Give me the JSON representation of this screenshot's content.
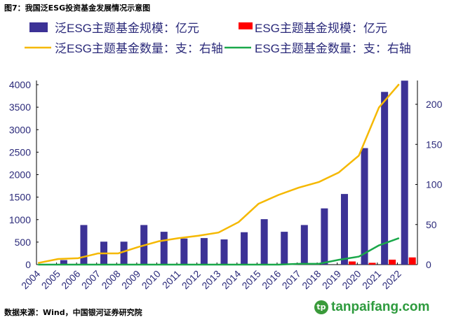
{
  "title": "图7：我国泛ESG投资基金发展情况示意图",
  "source": "数据来源：Wind，中国银河证券研究院",
  "watermark": "tanpaifang.com",
  "chart_data": {
    "type": "bar",
    "categories": [
      "2004",
      "2005",
      "2006",
      "2007",
      "2008",
      "2009",
      "2010",
      "2011",
      "2012",
      "2013",
      "2014",
      "2015",
      "2016",
      "2017",
      "2018",
      "2019",
      "2020",
      "2021",
      "2022"
    ],
    "series": [
      {
        "name": "泛ESG主题基金规模：亿元",
        "type": "bar",
        "axis": "left",
        "color": "#3c3296",
        "values": [
          0,
          100,
          880,
          510,
          510,
          880,
          730,
          580,
          590,
          560,
          720,
          1010,
          730,
          880,
          1250,
          1570,
          2590,
          3840,
          4090
        ]
      },
      {
        "name": "ESG主题基金规模：亿元",
        "type": "bar",
        "axis": "left",
        "color": "#ff0000",
        "values": [
          0,
          0,
          0,
          0,
          0,
          0,
          0,
          0,
          0,
          0,
          0,
          0,
          0,
          0,
          0,
          70,
          40,
          110,
          160
        ]
      },
      {
        "name": "泛ESG主题基金数量：支：右轴",
        "type": "line",
        "axis": "right",
        "color": "#f5b800",
        "values": [
          2,
          7,
          8,
          14,
          14,
          22,
          29,
          33,
          36,
          40,
          53,
          76,
          87,
          96,
          103,
          115,
          136,
          196,
          225
        ]
      },
      {
        "name": "ESG主题基金数量：支：右轴",
        "type": "line",
        "axis": "right",
        "color": "#1aa84a",
        "values": [
          0,
          0,
          0,
          0,
          0,
          0,
          0,
          0,
          0,
          0,
          0,
          0,
          0,
          1,
          1,
          6,
          10,
          24,
          33
        ]
      }
    ],
    "left_axis": {
      "ylim": [
        0,
        4000
      ],
      "ticks": [
        "0",
        "500",
        "1000",
        "1500",
        "2000",
        "2500",
        "3000",
        "3500",
        "4000"
      ]
    },
    "right_axis": {
      "ylim": [
        0,
        225
      ],
      "ticks": [
        "0",
        "50",
        "100",
        "150",
        "200"
      ]
    },
    "legend_position": "top",
    "grid": false
  }
}
